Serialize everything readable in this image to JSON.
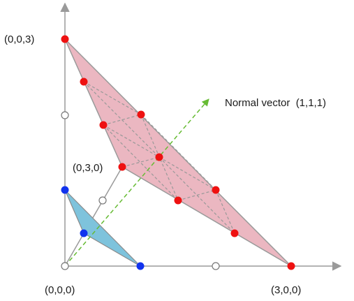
{
  "colors": {
    "axis": "#9a9a9a",
    "large_triangle_fill": "#e5a3b0",
    "large_triangle_stroke": "#9a9a9a",
    "small_triangle_fill": "#7ec3dc",
    "small_triangle_stroke": "#8a8a8a",
    "red_point": "#ee1111",
    "blue_point": "#1133ee",
    "open_point_fill": "#ffffff",
    "open_point_stroke": "#777777",
    "normal_vector": "#66bb33",
    "hidden_edges": "#999999"
  },
  "labels": {
    "origin": "(0,0,0)",
    "x_vertex": "(3,0,0)",
    "y_vertex": "(0,3,0)",
    "z_vertex": "(0,0,3)",
    "normal_vector": "Normal vector  (1,1,1)"
  }
}
